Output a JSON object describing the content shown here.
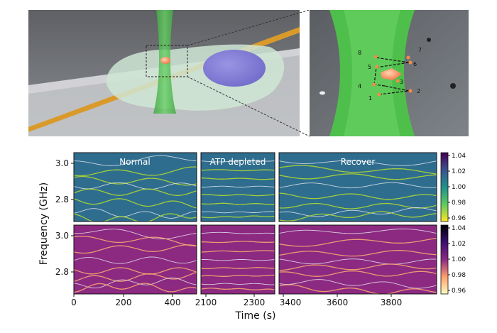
{
  "illustration": {
    "zoom_labels": [
      "1",
      "2",
      "3",
      "4",
      "5",
      "6",
      "7",
      "8"
    ]
  },
  "chart_data": {
    "type": "heatmap",
    "xlabel": "Time (s)",
    "ylabel": "Frequency (GHz)",
    "y_ticks": [
      "3.0",
      "2.8"
    ],
    "ylim": [
      2.7,
      3.05
    ],
    "segments": [
      {
        "title": "Normal",
        "x_ticks": [
          "0",
          "200",
          "400"
        ],
        "xlim": [
          0,
          470
        ]
      },
      {
        "title": "ATP depleted",
        "x_ticks": [
          "2100",
          "2300"
        ],
        "xlim": [
          2080,
          2360
        ]
      },
      {
        "title": "Recover",
        "x_ticks": [
          "3400",
          "3600",
          "3800"
        ],
        "xlim": [
          3380,
          3990
        ]
      }
    ],
    "colorbars": [
      {
        "colormap": "viridis_r",
        "ticks": [
          "1.04",
          "1.02",
          "1.00",
          "0.98",
          "0.96"
        ]
      },
      {
        "colormap": "magma",
        "ticks": [
          "1.04",
          "1.02",
          "1.00",
          "0.98",
          "0.96"
        ]
      }
    ],
    "colors": {
      "viridis_bg": "#2e6d8e",
      "magma_bg": "#8c2981",
      "viridis_line": "#b6de2b",
      "magma_line": "#fcae6f"
    }
  }
}
